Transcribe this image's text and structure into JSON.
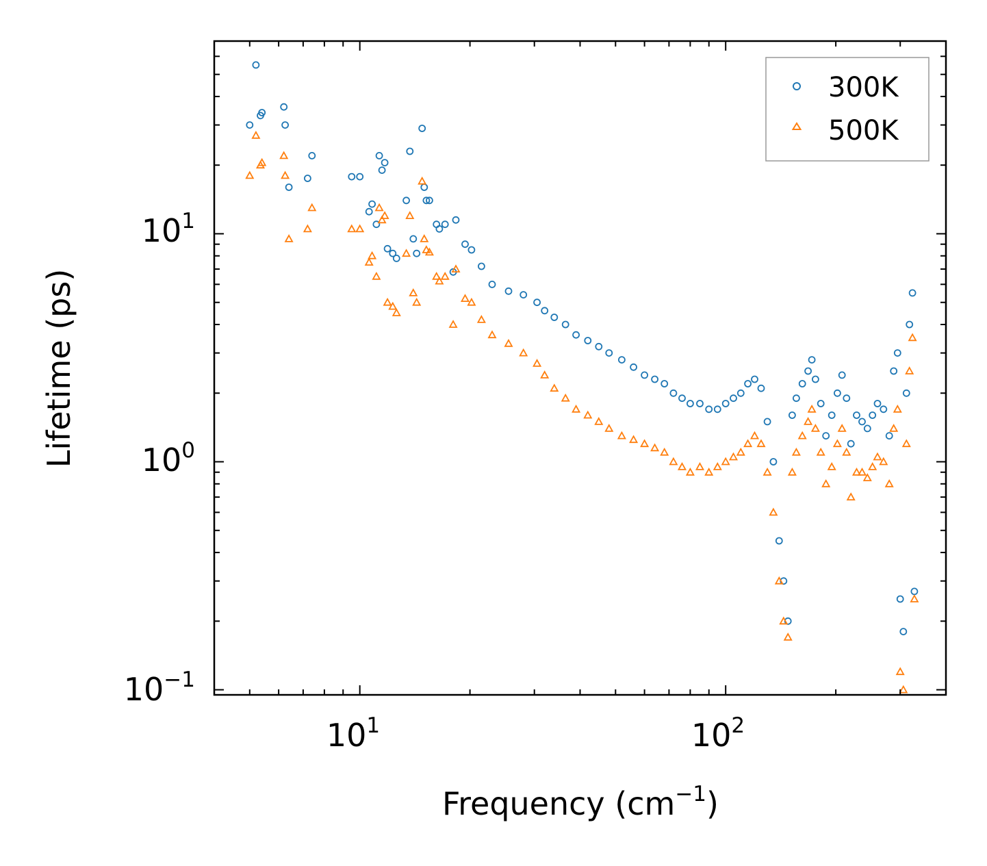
{
  "chart_data": {
    "type": "scatter",
    "xscale": "log",
    "yscale": "log",
    "xlim": [
      4.0,
      400.0
    ],
    "ylim": [
      0.095,
      70.0
    ],
    "xlabel": "Frequency (cm",
    "xlabel_sup": "−1",
    "xlabel_end": ")",
    "ylabel": "Lifetime (ps)",
    "x_ticks": [
      {
        "value": 10,
        "base": "10",
        "exp": "1"
      },
      {
        "value": 100,
        "base": "10",
        "exp": "2"
      }
    ],
    "y_ticks": [
      {
        "value": 0.1,
        "base": "10",
        "exp": "−1"
      },
      {
        "value": 1,
        "base": "10",
        "exp": "0"
      },
      {
        "value": 10,
        "base": "10",
        "exp": "1"
      }
    ],
    "legend_position": "top-right",
    "series": [
      {
        "name": "300K",
        "marker": "circle",
        "color": "#1f77b4",
        "x": [
          5.0,
          5.2,
          5.35,
          5.4,
          6.2,
          6.25,
          6.4,
          7.2,
          7.4,
          9.5,
          10.0,
          10.6,
          10.8,
          11.1,
          11.3,
          11.5,
          11.7,
          11.9,
          12.3,
          12.6,
          13.4,
          13.7,
          14.0,
          14.3,
          14.8,
          15.0,
          15.2,
          15.5,
          16.2,
          16.5,
          17.1,
          18.0,
          18.3,
          19.4,
          20.2,
          21.5,
          23.0,
          25.5,
          28.0,
          30.5,
          32.0,
          34.0,
          36.5,
          39.0,
          42.0,
          45.0,
          48.0,
          52.0,
          56.0,
          60.0,
          64.0,
          68.0,
          72.0,
          76.0,
          80.0,
          85.0,
          90.0,
          95.0,
          100.0,
          105.0,
          110.0,
          115.0,
          120.0,
          125.0,
          130.0,
          135.0,
          140.0,
          144.0,
          148.0,
          152.0,
          156.0,
          162.0,
          168.0,
          172.0,
          176.0,
          182.0,
          188.0,
          195.0,
          202.0,
          208.0,
          214.0,
          220.0,
          228.0,
          236.0,
          244.0,
          252.0,
          260.0,
          270.0,
          280.0,
          288.0,
          295.0,
          300.0,
          306.0,
          312.0,
          318.0,
          324.0,
          328.0
        ],
        "y": [
          30.0,
          55.0,
          33.0,
          34.0,
          36.0,
          30.0,
          16.0,
          17.5,
          22.0,
          17.8,
          17.8,
          12.5,
          13.5,
          11.0,
          22.0,
          19.0,
          20.5,
          8.6,
          8.2,
          7.8,
          14.0,
          23.0,
          9.5,
          8.2,
          29.0,
          16.0,
          14.0,
          14.0,
          11.0,
          10.5,
          11.0,
          6.8,
          11.5,
          9.0,
          8.5,
          7.2,
          6.0,
          5.6,
          5.4,
          5.0,
          4.6,
          4.3,
          4.0,
          3.6,
          3.4,
          3.2,
          3.0,
          2.8,
          2.6,
          2.4,
          2.3,
          2.2,
          2.0,
          1.9,
          1.8,
          1.8,
          1.7,
          1.7,
          1.8,
          1.9,
          2.0,
          2.2,
          2.3,
          2.1,
          1.5,
          1.0,
          0.45,
          0.3,
          0.2,
          1.6,
          1.9,
          2.2,
          2.5,
          2.8,
          2.3,
          1.8,
          1.3,
          1.6,
          2.0,
          2.4,
          1.9,
          1.2,
          1.6,
          1.5,
          1.4,
          1.6,
          1.8,
          1.7,
          1.3,
          2.5,
          3.0,
          0.25,
          0.18,
          2.0,
          4.0,
          5.5,
          0.27
        ]
      },
      {
        "name": "500K",
        "marker": "triangle",
        "color": "#ff7f0e",
        "x": [
          5.0,
          5.2,
          5.35,
          5.4,
          6.2,
          6.25,
          6.4,
          7.2,
          7.4,
          9.5,
          10.0,
          10.6,
          10.8,
          11.1,
          11.3,
          11.5,
          11.7,
          11.9,
          12.3,
          12.6,
          13.4,
          13.7,
          14.0,
          14.3,
          14.8,
          15.0,
          15.2,
          15.5,
          16.2,
          16.5,
          17.1,
          18.0,
          18.3,
          19.4,
          20.2,
          21.5,
          23.0,
          25.5,
          28.0,
          30.5,
          32.0,
          34.0,
          36.5,
          39.0,
          42.0,
          45.0,
          48.0,
          52.0,
          56.0,
          60.0,
          64.0,
          68.0,
          72.0,
          76.0,
          80.0,
          85.0,
          90.0,
          95.0,
          100.0,
          105.0,
          110.0,
          115.0,
          120.0,
          125.0,
          130.0,
          135.0,
          140.0,
          144.0,
          148.0,
          152.0,
          156.0,
          162.0,
          168.0,
          172.0,
          176.0,
          182.0,
          188.0,
          195.0,
          202.0,
          208.0,
          214.0,
          220.0,
          228.0,
          236.0,
          244.0,
          252.0,
          260.0,
          270.0,
          280.0,
          288.0,
          295.0,
          300.0,
          306.0,
          312.0,
          318.0,
          324.0,
          328.0
        ],
        "y": [
          18.0,
          27.0,
          20.0,
          20.5,
          22.0,
          18.0,
          9.5,
          10.5,
          13.0,
          10.5,
          10.5,
          7.5,
          8.0,
          6.5,
          13.0,
          11.5,
          12.0,
          5.0,
          4.8,
          4.5,
          8.2,
          12.0,
          5.5,
          5.0,
          17.0,
          9.5,
          8.5,
          8.3,
          6.5,
          6.2,
          6.5,
          4.0,
          7.0,
          5.2,
          5.0,
          4.2,
          3.6,
          3.3,
          3.0,
          2.7,
          2.4,
          2.1,
          1.9,
          1.7,
          1.6,
          1.5,
          1.4,
          1.3,
          1.25,
          1.2,
          1.15,
          1.1,
          1.0,
          0.95,
          0.9,
          0.95,
          0.9,
          0.95,
          1.0,
          1.05,
          1.1,
          1.2,
          1.3,
          1.2,
          0.9,
          0.6,
          0.3,
          0.2,
          0.17,
          0.9,
          1.1,
          1.3,
          1.5,
          1.7,
          1.4,
          1.1,
          0.8,
          0.95,
          1.2,
          1.4,
          1.1,
          0.7,
          0.9,
          0.9,
          0.85,
          0.95,
          1.05,
          1.0,
          0.8,
          1.4,
          1.7,
          0.12,
          0.1,
          1.2,
          2.5,
          3.5,
          0.25
        ]
      }
    ]
  }
}
